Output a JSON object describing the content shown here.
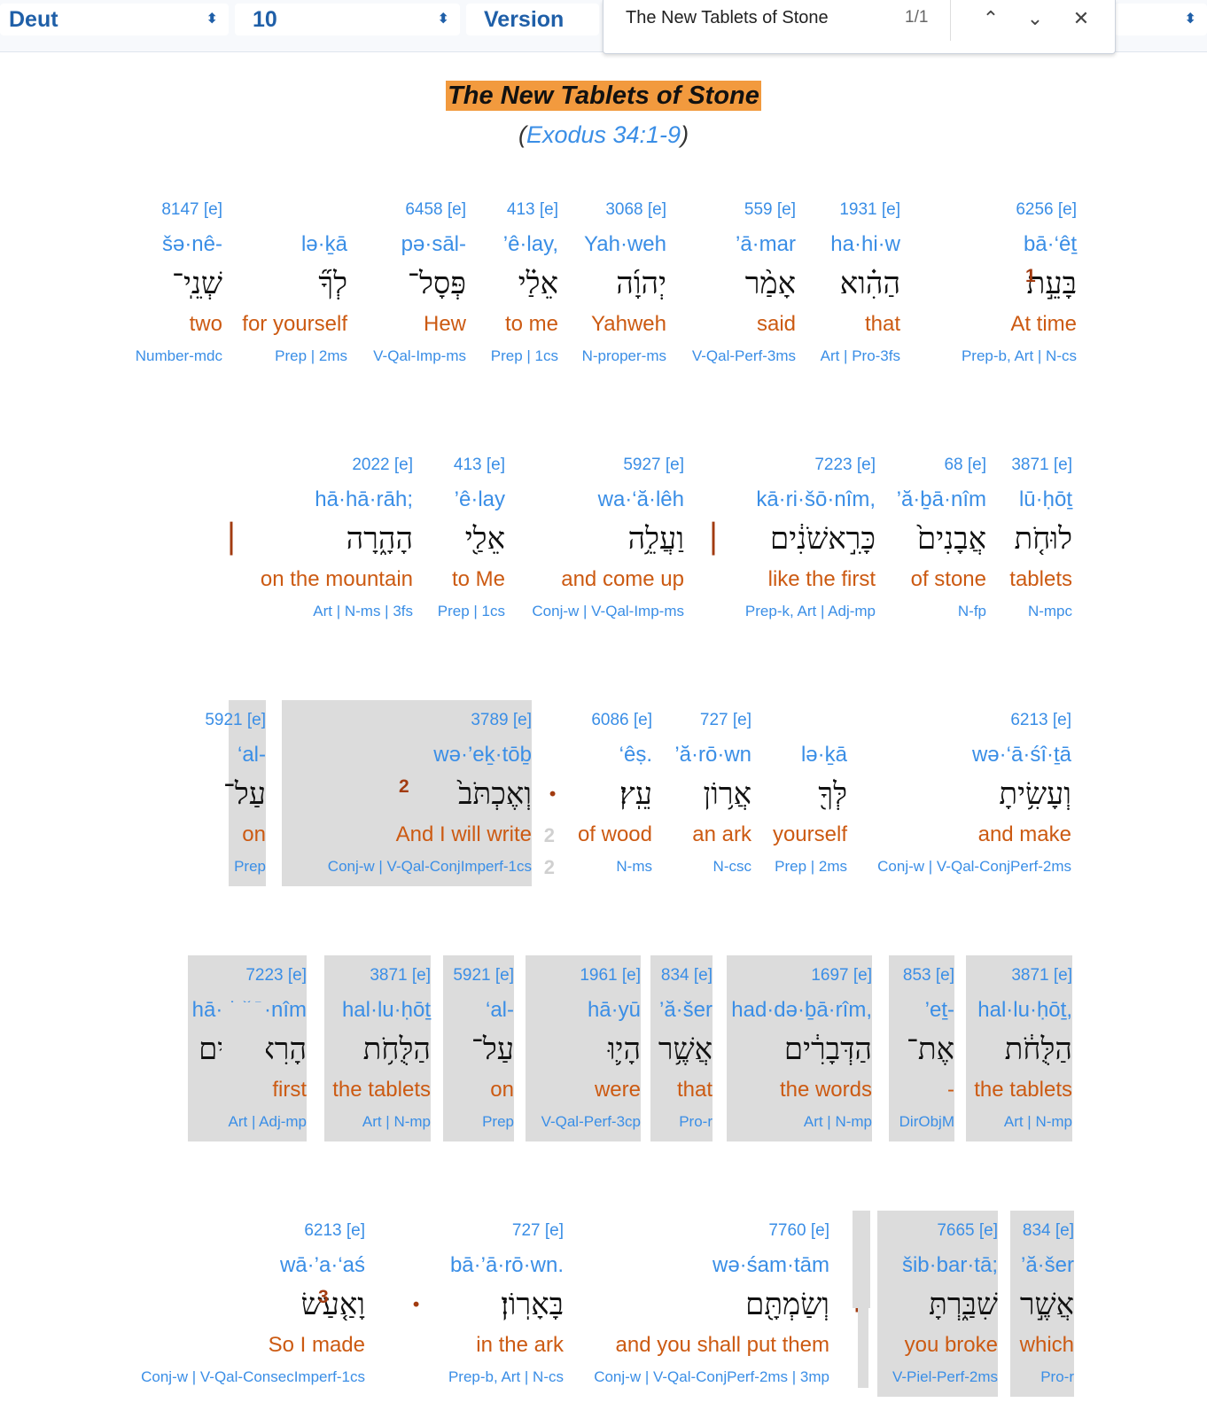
{
  "topbar": {
    "book": "Deut",
    "chapter": "10",
    "version": "Version",
    "find": {
      "query": "The New Tablets of Stone",
      "count": "1/1"
    }
  },
  "heading": {
    "title": "The New Tablets of Stone",
    "ref_open": "(",
    "ref_link": "Exodus 34:1-9",
    "ref_close": ")"
  },
  "colors": {
    "link": "#3a8ee6",
    "english": "#cc5a12",
    "highlight": "#f29a3e",
    "verse": "#a23b10"
  },
  "rows": [
    {
      "verse_number": "1",
      "words": [
        {
          "n": "6256 [e]",
          "t": "bā·‘êṯ",
          "h": "בָּעֵ֣ת",
          "e": "At time",
          "p": "Prep-b, Art | N-cs"
        },
        {
          "n": "1931 [e]",
          "t": "ha·hi·w",
          "h": "הַהִ֗וא",
          "e": "that",
          "p": "Art | Pro-3fs"
        },
        {
          "n": "559 [e]",
          "t": "’ā·mar",
          "h": "אָמַ֨ר",
          "e": "said",
          "p": "V-Qal-Perf-3ms"
        },
        {
          "n": "3068 [e]",
          "t": "Yah·weh",
          "h": "יְהוָ֜ה",
          "e": "Yahweh",
          "p": "N-proper-ms"
        },
        {
          "n": "413 [e]",
          "t": "’ê·lay,",
          "h": "אֵלַ֗י",
          "e": "to me",
          "p": "Prep | 1cs"
        },
        {
          "n": "6458 [e]",
          "t": "pə·sāl-",
          "h": "פְּסָל־",
          "e": "Hew",
          "p": "V-Qal-Imp-ms"
        },
        {
          "n": "",
          "t": "lə·ḵā",
          "h": "לְךָ֞",
          "e": "for yourself",
          "p": "Prep | 2ms"
        },
        {
          "n": "8147 [e]",
          "t": "šə·nê-",
          "h": "שְׁנֵֽי־",
          "e": "two",
          "p": "Number-mdc"
        }
      ]
    },
    {
      "verse_number": "",
      "words": [
        {
          "n": "3871 [e]",
          "t": "lū·ḥōṯ",
          "h": "לוּחֹ֤ת",
          "e": "tablets",
          "p": "N-mpc"
        },
        {
          "n": "68 [e]",
          "t": "’ă·ḇā·nîm",
          "h": "אֲבָנִים֙",
          "e": "of stone",
          "p": "N-fp"
        },
        {
          "n": "7223 [e]",
          "t": "kā·ri·šō·nîm,",
          "h": "כָּרִ֣אשֹׁנִ֔ים",
          "e": "like the first",
          "p": "Prep-k, Art | Adj-mp"
        },
        {
          "n": "5927 [e]",
          "t": "wa·‘ă·lêh",
          "h": "וַעֲלֵ֥ה",
          "e": "and come up",
          "p": "Conj-w | V-Qal-Imp-ms"
        },
        {
          "n": "413 [e]",
          "t": "’ê·lay",
          "h": "אֵלַ֖י",
          "e": "to Me",
          "p": "Prep | 1cs"
        },
        {
          "n": "2022 [e]",
          "t": "hā·hā·rāh;",
          "h": "הָהָ֑רָה",
          "e": "on the mountain",
          "p": "Art | N-ms | 3fs"
        }
      ]
    },
    {
      "verse_number": "",
      "words": [
        {
          "n": "6213 [e]",
          "t": "wə·‘ā·śî·ṯā",
          "h": "וְעָשִׂ֥יתָ",
          "e": "and make",
          "p": "Conj-w | V-Qal-ConjPerf-2ms"
        },
        {
          "n": "",
          "t": "lə·ḵā",
          "h": "לְּךָ֖",
          "e": "yourself",
          "p": "Prep | 2ms"
        },
        {
          "n": "727 [e]",
          "t": "’ă·rō·wn",
          "h": "אֲר֥וֹן",
          "e": "an ark",
          "p": "N-csc"
        },
        {
          "n": "6086 [e]",
          "t": "‘êṣ.",
          "h": "עֵֽץ׃",
          "e": "of wood",
          "p": "N-ms"
        },
        {
          "n": "3789 [e]",
          "t": "wə·’eḵ·tōḇ",
          "h": "וְאֶכְתֹּב֙",
          "e": "And I will write",
          "p": "Conj-w | V-Qal-ConjImperf-1cs",
          "vn": "2"
        },
        {
          "n": "5921 [e]",
          "t": "‘al-",
          "h": "עַל־",
          "e": "on",
          "p": "Prep"
        }
      ]
    },
    {
      "verse_number": "",
      "words": [
        {
          "n": "3871 [e]",
          "t": "hal·lu·ḥōṯ,",
          "h": "הַלֻּחֹ֔ת",
          "e": "the tablets",
          "p": "Art | N-mp"
        },
        {
          "n": "853 [e]",
          "t": "’eṯ-",
          "h": "אֶת־",
          "e": "-",
          "p": "DirObjM"
        },
        {
          "n": "1697 [e]",
          "t": "had·də·ḇā·rîm,",
          "h": "הַדְּבָרִ֔ים",
          "e": "the words",
          "p": "Art | N-mp"
        },
        {
          "n": "834 [e]",
          "t": "’ă·šer",
          "h": "אֲשֶׁ֥ר",
          "e": "that",
          "p": "Pro-r"
        },
        {
          "n": "1961 [e]",
          "t": "hā·yū",
          "h": "הָי֛וּ",
          "e": "were",
          "p": "V-Qal-Perf-3cp"
        },
        {
          "n": "5921 [e]",
          "t": "‘al-",
          "h": "עַל־",
          "e": "on",
          "p": "Prep"
        },
        {
          "n": "3871 [e]",
          "t": "hal·lu·ḥōṯ",
          "h": "הַלֻּחֹ֥ת",
          "e": "the tablets",
          "p": "Art | N-mp"
        },
        {
          "n": "7223 [e]",
          "t": "hā·ri·šō·nîm",
          "h": "הָרִאשֹׁנִ֖ים",
          "e": "first",
          "p": "Art | Adj-mp"
        }
      ]
    },
    {
      "verse_number": "3",
      "words": [
        {
          "n": "834 [e]",
          "t": "’ă·šer",
          "h": "אֲשֶׁ֣ר",
          "e": "which",
          "p": "Pro-r"
        },
        {
          "n": "7665 [e]",
          "t": "šib·bar·tā;",
          "h": "שִׁבַּ֑רְתָּ",
          "e": "you broke",
          "p": "V-Piel-Perf-2ms"
        },
        {
          "n": "7760 [e]",
          "t": "wə·śam·tām",
          "h": "וְשַׂמְתָּ֖ם",
          "e": "and you shall put them",
          "p": "Conj-w | V-Qal-ConjPerf-2ms | 3mp"
        },
        {
          "n": "727 [e]",
          "t": "bā·’ā·rō·wn.",
          "h": "בָּאָרֽוֹן׃",
          "e": "in the ark",
          "p": "Prep-b, Art | N-cs"
        },
        {
          "n": "6213 [e]",
          "t": "wā·’a·‘aś",
          "h": "וָאַ֤עַשׂ",
          "e": "So I made",
          "p": "Conj-w | V-Qal-ConsecImperf-1cs"
        }
      ]
    }
  ],
  "punctuation": {
    "comma": "׀",
    "period": "."
  }
}
